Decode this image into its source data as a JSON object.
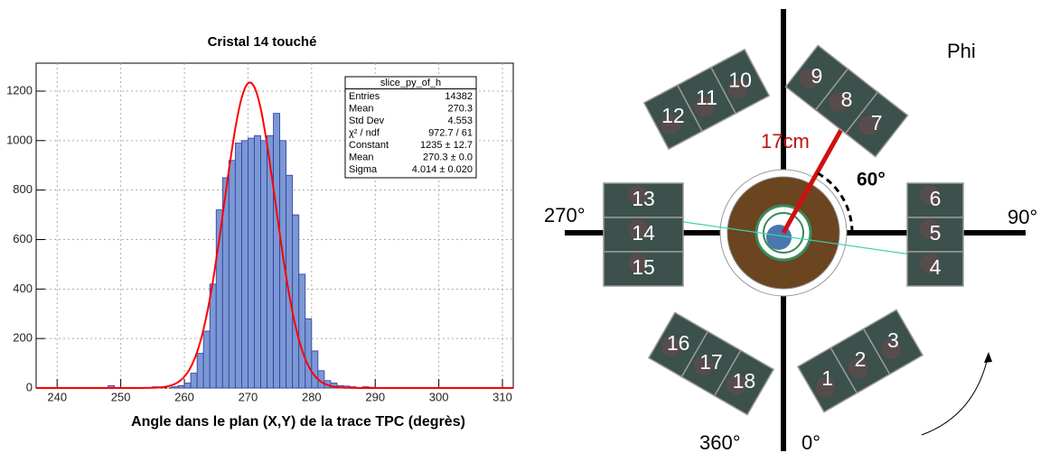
{
  "chart_data": {
    "type": "histogram",
    "title": "Cristal 14 touché",
    "x_label": "Angle dans le plan (X,Y) de la trace TPC (degrès)",
    "bins": [
      237,
      238,
      239,
      240,
      241,
      242,
      243,
      244,
      245,
      246,
      247,
      248,
      249,
      250,
      251,
      252,
      253,
      254,
      255,
      256,
      257,
      258,
      259,
      260,
      261,
      262,
      263,
      264,
      265,
      266,
      267,
      268,
      269,
      270,
      271,
      272,
      273,
      274,
      275,
      276,
      277,
      278,
      279,
      280,
      281,
      282,
      283,
      284,
      285,
      286,
      287,
      288,
      289,
      290,
      291,
      292,
      293,
      294,
      295,
      296,
      297,
      298,
      299,
      300,
      301,
      302,
      303,
      304,
      305,
      306,
      307,
      308,
      309,
      310,
      311
    ],
    "values": [
      0,
      0,
      0,
      0,
      0,
      0,
      0,
      0,
      0,
      0,
      0,
      10,
      0,
      0,
      0,
      0,
      0,
      0,
      5,
      0,
      0,
      5,
      10,
      20,
      60,
      140,
      230,
      420,
      720,
      850,
      920,
      990,
      1000,
      1010,
      1020,
      1000,
      1020,
      1110,
      1000,
      860,
      700,
      460,
      280,
      150,
      70,
      30,
      20,
      10,
      8,
      5,
      0,
      5,
      3,
      0,
      0,
      0,
      0,
      0,
      0,
      0,
      0,
      0,
      0,
      0,
      0,
      0,
      0,
      0,
      0,
      0,
      0,
      0,
      0,
      0
    ],
    "color": "#7b98d4",
    "edge_color": "#2b3c9a",
    "xlim": [
      236.7,
      311.7
    ],
    "ylim": [
      0,
      1313
    ],
    "xticks": [
      240,
      250,
      260,
      270,
      280,
      290,
      300,
      310
    ],
    "yticks": [
      0,
      200,
      400,
      600,
      800,
      1000,
      1200
    ],
    "grid": true,
    "fit": {
      "constant": 1235,
      "mean": 270.3,
      "sigma": 4.014,
      "color": "#ff0000"
    },
    "stats": {
      "title": "slice_py_of_h",
      "rows": [
        [
          "Entries",
          "14382"
        ],
        [
          "Mean",
          "270.3"
        ],
        [
          "Std Dev",
          "4.553"
        ],
        [
          "χ² / ndf",
          "972.7 / 61"
        ],
        [
          "Constant",
          "1235 ± 12.7"
        ],
        [
          "Mean",
          "270.3 ± 0.0"
        ],
        [
          "Sigma",
          "4.014 ± 0.020"
        ]
      ]
    }
  },
  "diagram": {
    "phi": "Phi",
    "angle_270": "270°",
    "angle_90": "90°",
    "angle_360": "360°",
    "angle_0": "0°",
    "radius": "17cm",
    "angle_60": "60°",
    "crystals": [
      "1",
      "2",
      "3",
      "4",
      "5",
      "6",
      "7",
      "8",
      "9",
      "10",
      "11",
      "12",
      "13",
      "14",
      "15",
      "16",
      "17",
      "18"
    ]
  }
}
